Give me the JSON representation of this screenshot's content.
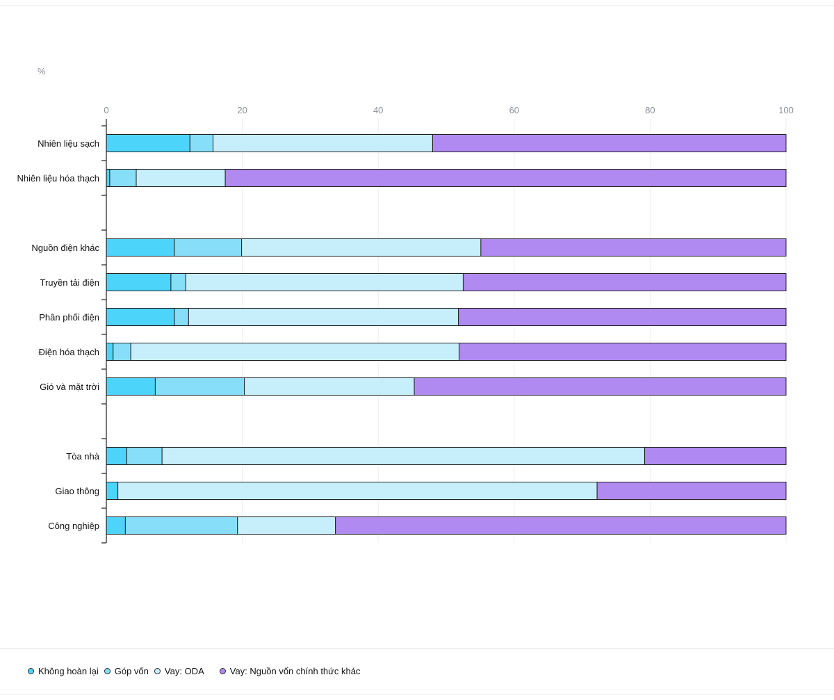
{
  "chart_data": {
    "type": "bar",
    "orientation": "horizontal",
    "stacked": true,
    "unit_label": "%",
    "xlim": [
      0,
      100
    ],
    "xticks": [
      0,
      20,
      40,
      60,
      80,
      100
    ],
    "grid": true,
    "legend_position": "bottom-left",
    "categories": [
      "Nhiên liệu sạch",
      "Nhiên liệu hóa thạch",
      "",
      "Nguồn điện khác",
      "Truyền tải điện",
      "Phân phối điện",
      "Điện hóa thạch",
      "Gió và mặt trời",
      "",
      "Tòa nhà",
      "Giao thông",
      "Công nghiệp"
    ],
    "series": [
      {
        "name": "Không hoàn lại",
        "color": "#4dd4fb",
        "values": [
          12.3,
          0.5,
          null,
          10.0,
          9.5,
          10.0,
          1.0,
          7.2,
          null,
          3.0,
          1.7,
          2.8
        ]
      },
      {
        "name": "Góp vốn",
        "color": "#86def8",
        "values": [
          3.4,
          3.9,
          null,
          9.9,
          2.2,
          2.1,
          2.6,
          13.1,
          null,
          5.2,
          0,
          16.5
        ]
      },
      {
        "name": "Vay: ODA",
        "color": "#c6eefb",
        "values": [
          32.3,
          13.1,
          null,
          35.2,
          40.8,
          39.7,
          48.3,
          25.0,
          null,
          71.0,
          70.5,
          14.4
        ]
      },
      {
        "name": "Vay: Nguồn vốn chính thức khác",
        "color": "#b08af0",
        "values": [
          52.0,
          82.5,
          null,
          44.9,
          47.5,
          48.2,
          48.1,
          54.7,
          null,
          20.8,
          27.8,
          66.3
        ]
      }
    ]
  }
}
